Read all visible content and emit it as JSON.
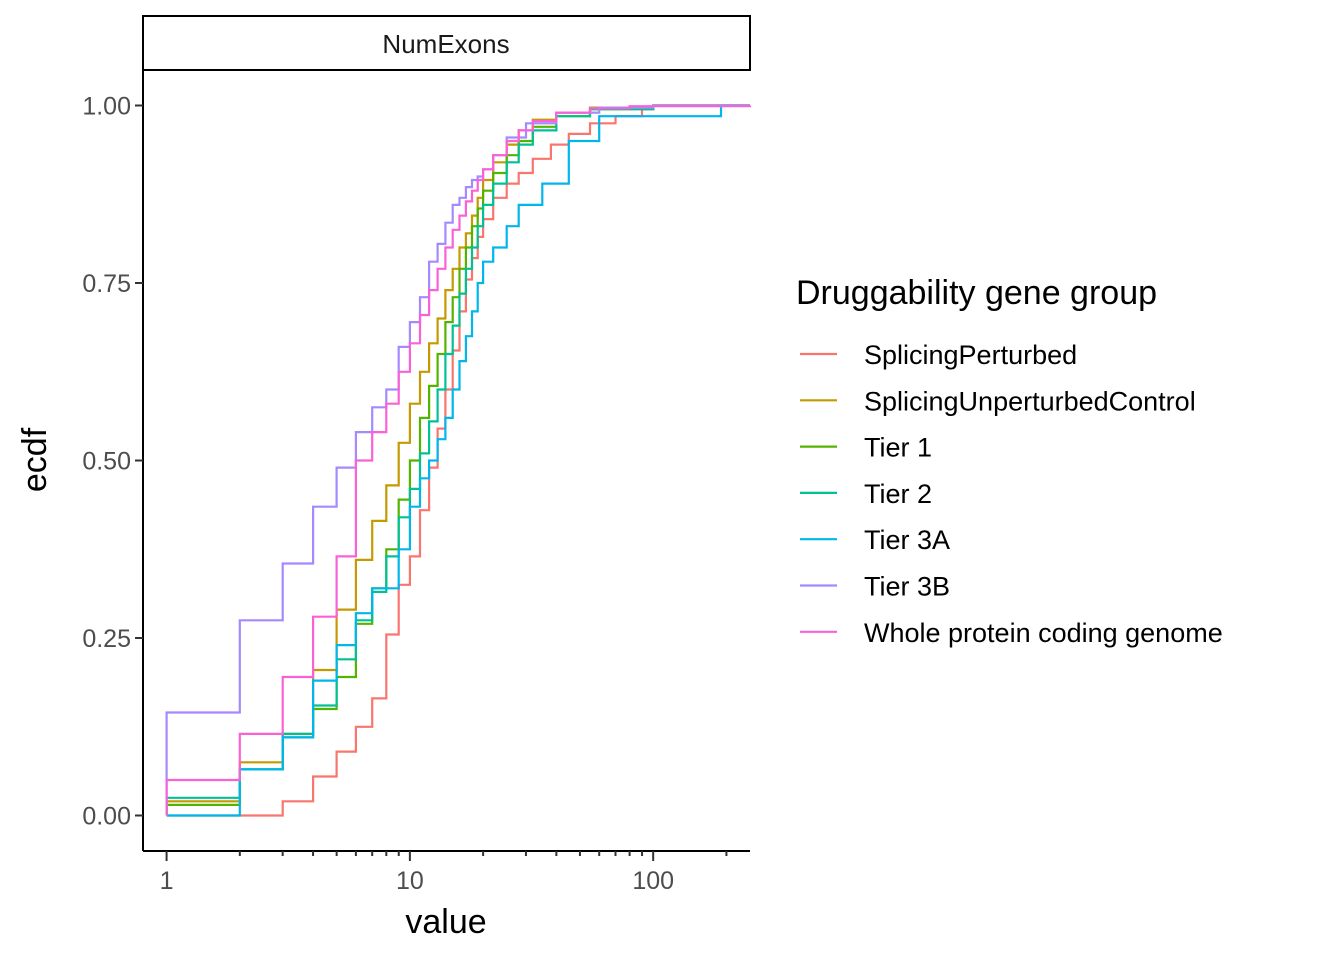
{
  "chart_data": {
    "type": "line",
    "step": true,
    "facet": "NumExons",
    "xlabel": "value",
    "ylabel": "ecdf",
    "x_scale": "log10",
    "xlim": [
      0.8,
      250
    ],
    "ylim": [
      -0.05,
      1.05
    ],
    "x_ticks": [
      {
        "value": 1,
        "label": "1"
      },
      {
        "value": 10,
        "label": "10"
      },
      {
        "value": 100,
        "label": "100"
      }
    ],
    "y_ticks": [
      {
        "value": 0,
        "label": "0.00"
      },
      {
        "value": 0.25,
        "label": "0.25"
      },
      {
        "value": 0.5,
        "label": "0.50"
      },
      {
        "value": 0.75,
        "label": "0.75"
      },
      {
        "value": 1,
        "label": "1.00"
      }
    ],
    "legend": {
      "title": "Druggability gene group",
      "position": "right"
    },
    "grid": false,
    "series": [
      {
        "name": "SplicingPerturbed",
        "color": "#F8766D",
        "x": [
          1,
          2,
          3,
          4,
          5,
          6,
          7,
          8,
          9,
          10,
          11,
          12,
          13,
          14,
          15,
          16,
          17,
          18,
          19,
          20,
          22,
          25,
          28,
          32,
          38,
          45,
          55,
          70,
          90,
          100
        ],
        "y": [
          0,
          0,
          0.02,
          0.055,
          0.09,
          0.125,
          0.165,
          0.255,
          0.325,
          0.365,
          0.43,
          0.49,
          0.545,
          0.6,
          0.655,
          0.71,
          0.755,
          0.785,
          0.815,
          0.84,
          0.87,
          0.89,
          0.905,
          0.925,
          0.945,
          0.96,
          0.975,
          0.985,
          0.995,
          1.0
        ]
      },
      {
        "name": "SplicingUnperturbedControl",
        "color": "#C49A00",
        "x": [
          1,
          2,
          3,
          4,
          5,
          6,
          7,
          8,
          9,
          10,
          11,
          12,
          13,
          14,
          15,
          16,
          17,
          18,
          19,
          20,
          22,
          25,
          28,
          32,
          40,
          55,
          100
        ],
        "y": [
          0.02,
          0.075,
          0.115,
          0.205,
          0.29,
          0.36,
          0.415,
          0.465,
          0.525,
          0.58,
          0.625,
          0.665,
          0.7,
          0.74,
          0.77,
          0.8,
          0.82,
          0.845,
          0.87,
          0.895,
          0.92,
          0.945,
          0.965,
          0.98,
          0.99,
          0.997,
          1.0
        ]
      },
      {
        "name": "Tier 1",
        "color": "#53B400",
        "x": [
          1,
          2,
          3,
          4,
          5,
          6,
          7,
          8,
          9,
          10,
          11,
          12,
          13,
          14,
          15,
          16,
          17,
          18,
          19,
          20,
          22,
          25,
          28,
          32,
          40,
          55,
          100
        ],
        "y": [
          0.015,
          0.065,
          0.11,
          0.15,
          0.195,
          0.27,
          0.32,
          0.375,
          0.445,
          0.5,
          0.56,
          0.605,
          0.65,
          0.695,
          0.73,
          0.77,
          0.8,
          0.83,
          0.855,
          0.88,
          0.905,
          0.93,
          0.95,
          0.97,
          0.985,
          0.995,
          1.0
        ]
      },
      {
        "name": "Tier 2",
        "color": "#00C094",
        "x": [
          1,
          2,
          3,
          4,
          5,
          6,
          7,
          8,
          9,
          10,
          11,
          12,
          13,
          14,
          15,
          16,
          17,
          18,
          19,
          20,
          22,
          25,
          28,
          32,
          40,
          55,
          100
        ],
        "y": [
          0.025,
          0.065,
          0.115,
          0.155,
          0.22,
          0.275,
          0.315,
          0.365,
          0.42,
          0.46,
          0.51,
          0.555,
          0.6,
          0.65,
          0.69,
          0.735,
          0.77,
          0.8,
          0.83,
          0.86,
          0.89,
          0.92,
          0.945,
          0.965,
          0.985,
          0.995,
          1.0
        ]
      },
      {
        "name": "Tier 3A",
        "color": "#00B6EB",
        "x": [
          1,
          2,
          3,
          4,
          5,
          6,
          7,
          8,
          9,
          10,
          11,
          12,
          13,
          14,
          15,
          16,
          17,
          18,
          19,
          20,
          22,
          25,
          28,
          35,
          45,
          60,
          190
        ],
        "y": [
          0,
          0.065,
          0.11,
          0.19,
          0.24,
          0.285,
          0.32,
          0.32,
          0.375,
          0.435,
          0.475,
          0.5,
          0.53,
          0.56,
          0.6,
          0.64,
          0.675,
          0.71,
          0.75,
          0.78,
          0.8,
          0.83,
          0.86,
          0.89,
          0.95,
          0.985,
          1.0
        ]
      },
      {
        "name": "Tier 3B",
        "color": "#A58AFF",
        "x": [
          1,
          2,
          3,
          4,
          5,
          6,
          7,
          8,
          9,
          10,
          11,
          12,
          13,
          14,
          15,
          16,
          17,
          18,
          19,
          20,
          22,
          25,
          30,
          40,
          60,
          100
        ],
        "y": [
          0.145,
          0.275,
          0.355,
          0.435,
          0.49,
          0.54,
          0.575,
          0.6,
          0.66,
          0.695,
          0.73,
          0.78,
          0.805,
          0.835,
          0.86,
          0.87,
          0.885,
          0.895,
          0.9,
          0.91,
          0.93,
          0.955,
          0.975,
          0.99,
          0.997,
          1.0
        ]
      },
      {
        "name": "Whole protein coding genome",
        "color": "#FB61D7",
        "x": [
          1,
          2,
          3,
          4,
          5,
          6,
          7,
          8,
          9,
          10,
          11,
          12,
          13,
          14,
          15,
          16,
          17,
          18,
          19,
          20,
          22,
          25,
          28,
          32,
          40,
          55,
          80,
          250
        ],
        "y": [
          0.05,
          0.115,
          0.195,
          0.28,
          0.365,
          0.5,
          0.54,
          0.58,
          0.625,
          0.665,
          0.705,
          0.74,
          0.77,
          0.8,
          0.825,
          0.845,
          0.865,
          0.88,
          0.895,
          0.91,
          0.93,
          0.95,
          0.965,
          0.978,
          0.99,
          0.996,
          0.999,
          1.0
        ]
      }
    ]
  }
}
